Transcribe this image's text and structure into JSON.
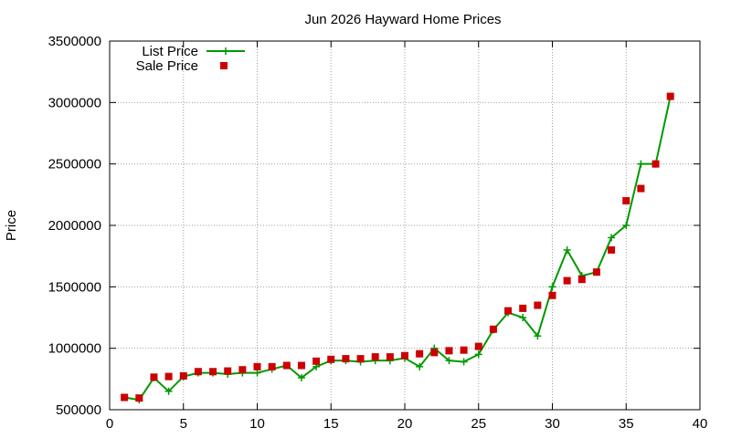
{
  "chart_data": {
    "type": "line",
    "title": "Jun 2026 Hayward Home Prices",
    "xlabel": "",
    "ylabel": "Price",
    "xlim": [
      0,
      40
    ],
    "ylim": [
      500000,
      3500000
    ],
    "xticks": [
      0,
      5,
      10,
      15,
      20,
      25,
      30,
      35,
      40
    ],
    "yticks": [
      500000,
      1000000,
      1500000,
      2000000,
      2500000,
      3000000,
      3500000
    ],
    "grid": true,
    "legend_position": "top-left",
    "series": [
      {
        "name": "List Price",
        "style": "line+cross",
        "color": "#009900",
        "x": [
          1,
          2,
          3,
          4,
          5,
          6,
          7,
          8,
          9,
          10,
          11,
          12,
          13,
          14,
          15,
          16,
          17,
          18,
          19,
          20,
          21,
          22,
          23,
          24,
          25,
          26,
          27,
          28,
          29,
          30,
          31,
          32,
          33,
          34,
          35,
          36,
          37,
          38
        ],
        "y": [
          600000,
          580000,
          760000,
          650000,
          770000,
          800000,
          800000,
          790000,
          800000,
          800000,
          830000,
          860000,
          760000,
          850000,
          900000,
          900000,
          890000,
          900000,
          900000,
          920000,
          850000,
          1000000,
          900000,
          890000,
          950000,
          1150000,
          1290000,
          1250000,
          1100000,
          1500000,
          1800000,
          1590000,
          1620000,
          1900000,
          2000000,
          2500000,
          2500000,
          3050000
        ]
      },
      {
        "name": "Sale Price",
        "style": "square",
        "color": "#cc0000",
        "x": [
          1,
          2,
          3,
          4,
          5,
          6,
          7,
          8,
          9,
          10,
          11,
          12,
          13,
          14,
          15,
          16,
          17,
          18,
          19,
          20,
          21,
          22,
          23,
          24,
          25,
          26,
          27,
          28,
          29,
          30,
          31,
          32,
          33,
          34,
          35,
          36,
          37,
          38
        ],
        "y": [
          600000,
          595000,
          765000,
          770000,
          775000,
          810000,
          810000,
          815000,
          825000,
          850000,
          850000,
          860000,
          860000,
          895000,
          910000,
          915000,
          915000,
          930000,
          930000,
          940000,
          955000,
          965000,
          980000,
          985000,
          1015000,
          1155000,
          1305000,
          1325000,
          1350000,
          1430000,
          1550000,
          1560000,
          1620000,
          1800000,
          2200000,
          2300000,
          2500000,
          3050000
        ]
      }
    ]
  }
}
